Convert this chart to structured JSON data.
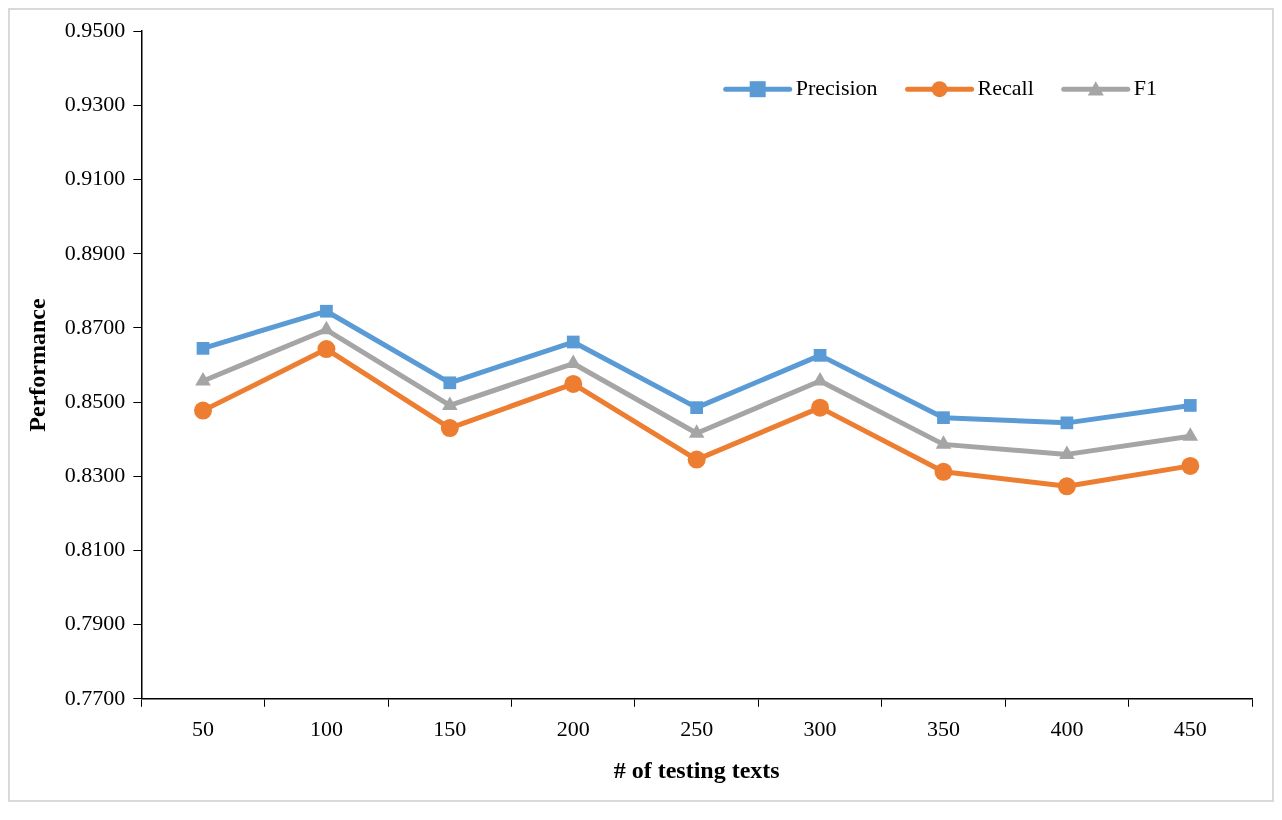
{
  "chart_data": {
    "type": "line",
    "xlabel": "# of testing texts",
    "ylabel": "Performance",
    "categories": [
      "50",
      "100",
      "150",
      "200",
      "250",
      "300",
      "350",
      "400",
      "450"
    ],
    "series": [
      {
        "name": "Precision",
        "color": "#5b9bd5",
        "marker": "square",
        "values": [
          0.8645,
          0.8745,
          0.8552,
          0.8662,
          0.8485,
          0.8626,
          0.8458,
          0.8444,
          0.8491
        ]
      },
      {
        "name": "Recall",
        "color": "#ed7d31",
        "marker": "circle",
        "values": [
          0.8477,
          0.8643,
          0.843,
          0.8549,
          0.8345,
          0.8485,
          0.8312,
          0.8273,
          0.8328
        ]
      },
      {
        "name": "F1",
        "color": "#a5a5a5",
        "marker": "triangle",
        "values": [
          0.8557,
          0.8695,
          0.8491,
          0.8604,
          0.8416,
          0.8557,
          0.8386,
          0.8359,
          0.8408
        ]
      }
    ],
    "ylim": [
      0.77,
      0.95
    ],
    "yticks": [
      {
        "value": 0.77,
        "label": "0.7700"
      },
      {
        "value": 0.79,
        "label": "0.7900"
      },
      {
        "value": 0.81,
        "label": "0.8100"
      },
      {
        "value": 0.83,
        "label": "0.8300"
      },
      {
        "value": 0.85,
        "label": "0.8500"
      },
      {
        "value": 0.87,
        "label": "0.8700"
      },
      {
        "value": 0.89,
        "label": "0.8900"
      },
      {
        "value": 0.91,
        "label": "0.9100"
      },
      {
        "value": 0.93,
        "label": "0.9300"
      },
      {
        "value": 0.95,
        "label": "0.9500"
      }
    ],
    "grid": false,
    "legend": "top right",
    "line_style": "solid"
  }
}
